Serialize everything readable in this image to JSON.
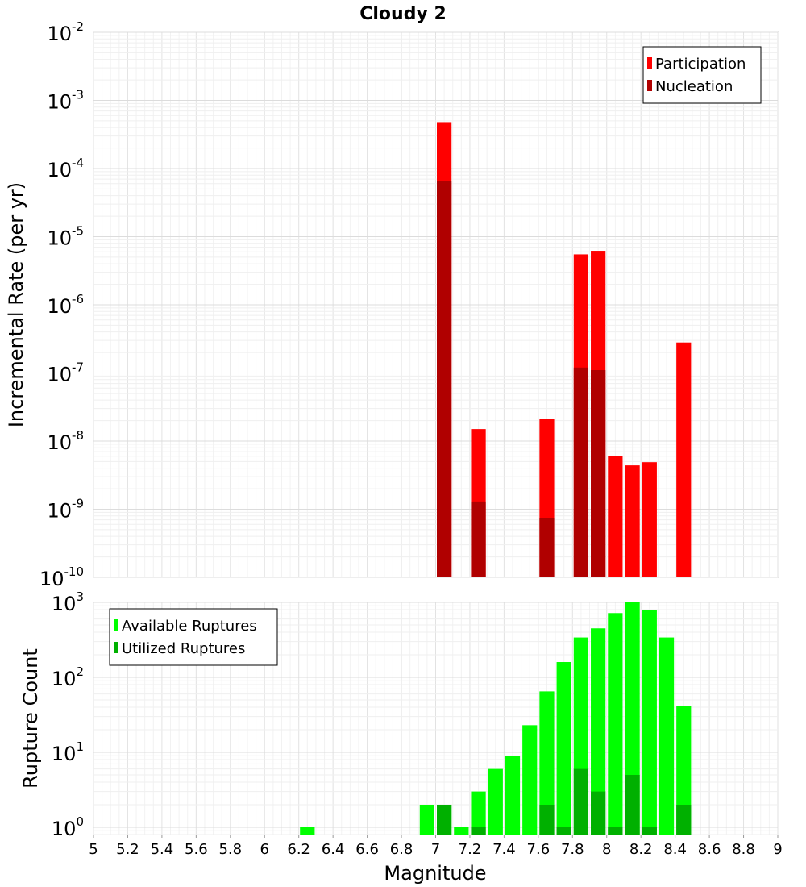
{
  "chart_data": [
    {
      "type": "bar",
      "title": "Cloudy 2",
      "xlabel": "",
      "ylabel": "Incremental Rate (per yr)",
      "y_scale": "log",
      "ylim": [
        1e-10,
        0.01
      ],
      "y_ticks": [
        {
          "base": "10",
          "exp": "-2"
        },
        {
          "base": "10",
          "exp": "-3"
        },
        {
          "base": "10",
          "exp": "-4"
        },
        {
          "base": "10",
          "exp": "-5"
        },
        {
          "base": "10",
          "exp": "-6"
        },
        {
          "base": "10",
          "exp": "-7"
        },
        {
          "base": "10",
          "exp": "-8"
        },
        {
          "base": "10",
          "exp": "-9"
        },
        {
          "base": "10",
          "exp": "-10"
        }
      ],
      "legend_position": "top-right",
      "grid": true,
      "series": [
        {
          "name": "Participation",
          "color": "#ff0000",
          "x": [
            7.05,
            7.25,
            7.65,
            7.85,
            7.95,
            8.05,
            8.15,
            8.25,
            8.45
          ],
          "values": [
            0.00048,
            1.5e-08,
            2.1e-08,
            5.5e-06,
            6.2e-06,
            6e-09,
            4.4e-09,
            4.9e-09,
            2.8e-07
          ]
        },
        {
          "name": "Nucleation",
          "color": "#b00000",
          "x": [
            7.05,
            7.25,
            7.65,
            7.85,
            7.95
          ],
          "values": [
            6.5e-05,
            1.3e-09,
            7.5e-10,
            1.2e-07,
            1.1e-07
          ]
        }
      ]
    },
    {
      "type": "bar",
      "xlabel": "Magnitude",
      "ylabel": "Rupture Count",
      "xlim": [
        5,
        9
      ],
      "x_ticks": [
        "5",
        "5.2",
        "5.4",
        "5.6",
        "5.8",
        "6",
        "6.2",
        "6.4",
        "6.6",
        "6.8",
        "7",
        "7.2",
        "7.4",
        "7.6",
        "7.8",
        "8",
        "8.2",
        "8.4",
        "8.6",
        "8.8",
        "9"
      ],
      "y_scale": "log",
      "ylim": [
        0.8,
        1000
      ],
      "y_ticks": [
        {
          "base": "10",
          "exp": "3"
        },
        {
          "base": "10",
          "exp": "2"
        },
        {
          "base": "10",
          "exp": "1"
        },
        {
          "base": "10",
          "exp": "0"
        }
      ],
      "legend_position": "top-left",
      "grid": true,
      "series": [
        {
          "name": "Available Ruptures",
          "color": "#00ff00",
          "x": [
            6.25,
            6.95,
            7.05,
            7.15,
            7.25,
            7.35,
            7.45,
            7.55,
            7.65,
            7.75,
            7.85,
            7.95,
            8.05,
            8.15,
            8.25,
            8.35,
            8.45
          ],
          "values": [
            1,
            2,
            2,
            1,
            3,
            6,
            9,
            23,
            65,
            160,
            340,
            450,
            720,
            1000,
            790,
            340,
            42
          ]
        },
        {
          "name": "Utilized Ruptures",
          "color": "#00b000",
          "x": [
            7.05,
            7.25,
            7.65,
            7.75,
            7.85,
            7.95,
            8.05,
            8.15,
            8.25,
            8.45
          ],
          "values": [
            2,
            1,
            2,
            1,
            6,
            3,
            1,
            5,
            1,
            2
          ]
        }
      ]
    }
  ]
}
